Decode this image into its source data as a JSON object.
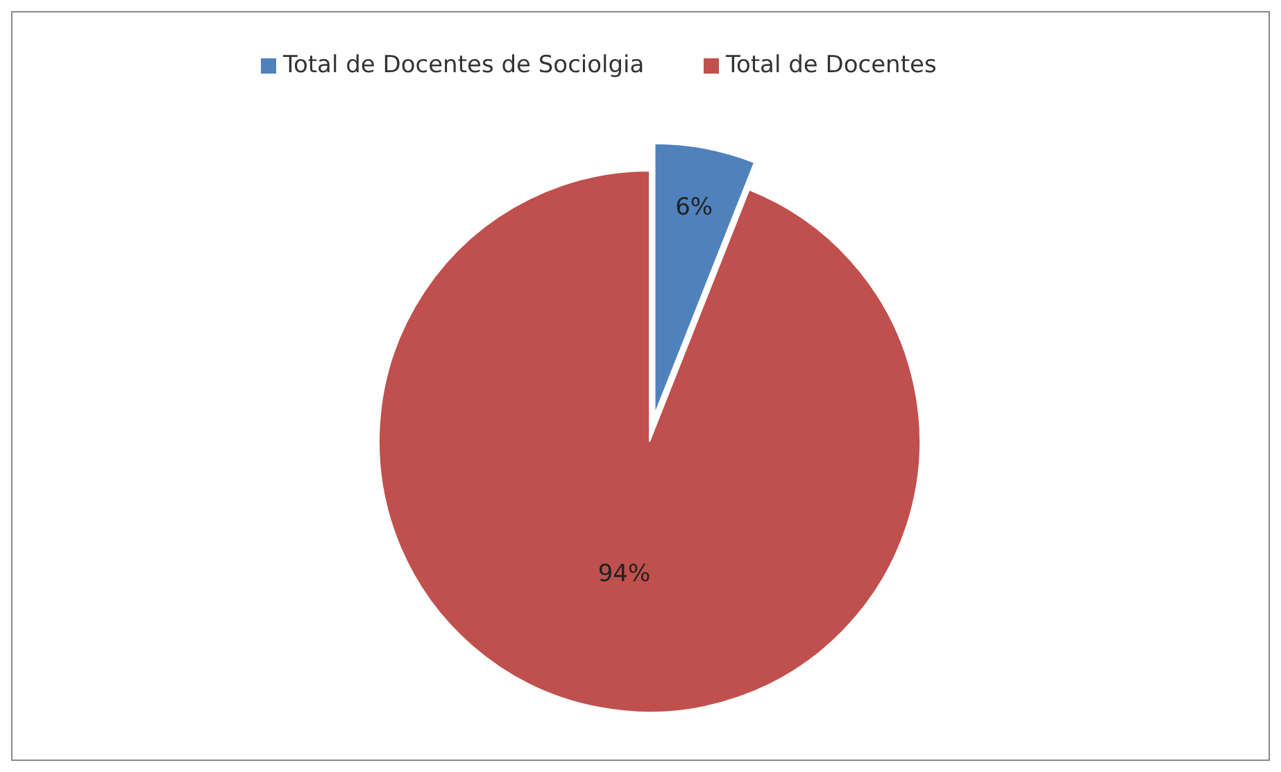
{
  "chart_data": {
    "type": "pie",
    "categories": [
      "Total de Docentes de Sociolgia",
      "Total de Docentes"
    ],
    "values": [
      6,
      94
    ],
    "colors": [
      "#4f81bd",
      "#c0504d"
    ],
    "value_labels": [
      "6%",
      "94%"
    ],
    "legend": "top"
  }
}
